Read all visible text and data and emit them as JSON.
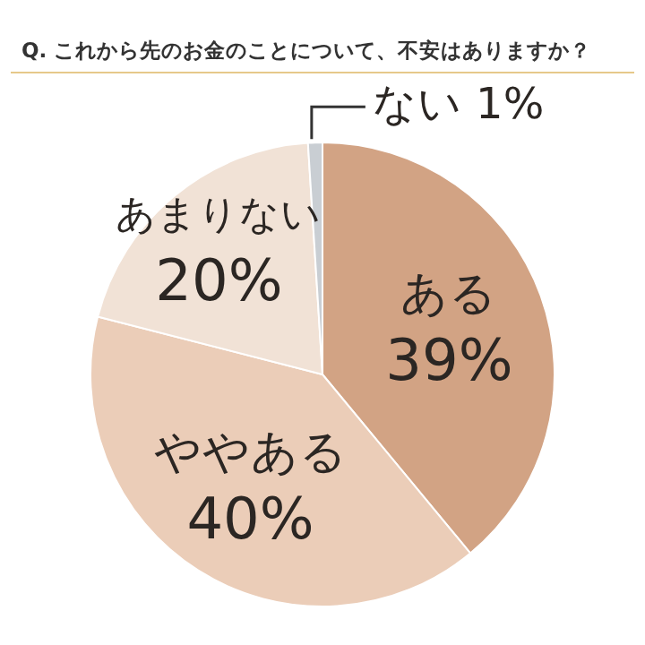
{
  "chart_data": {
    "type": "pie",
    "title": "Q. これから先のお金のことについて、不安はありますか？",
    "categories": [
      "ある",
      "ややある",
      "あまりない",
      "ない"
    ],
    "values": [
      39,
      40,
      20,
      1
    ],
    "colors": [
      "#d2a384",
      "#ebcdb8",
      "#f1e2d6",
      "#c9ced3"
    ],
    "value_labels": [
      "39%",
      "40%",
      "20%",
      "1%"
    ],
    "legend": false
  }
}
